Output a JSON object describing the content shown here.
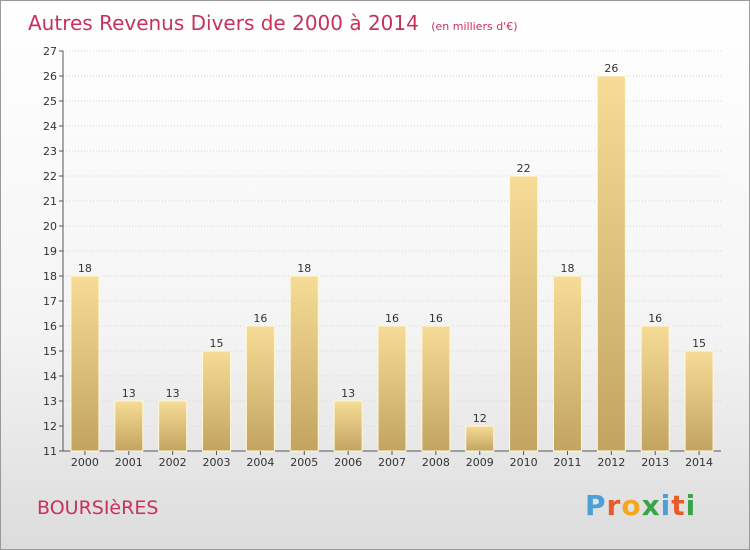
{
  "header": {
    "title": "Autres Revenus Divers de 2000 à 2014",
    "subtitle": "(en milliers d'€)"
  },
  "footer": {
    "place": "BOURSIèRES",
    "brand": "Proxiti"
  },
  "colors": {
    "title": "#c8325a",
    "bar_top": "#f6dc96",
    "bar_bottom": "#c2a460",
    "brand_letters": [
      "#4aa0d8",
      "#e85a2a",
      "#f2a81e",
      "#3aa34a",
      "#4aa0d8",
      "#e85a2a",
      "#3aa34a"
    ]
  },
  "chart_data": {
    "type": "bar",
    "categories": [
      "2000",
      "2001",
      "2002",
      "2003",
      "2004",
      "2005",
      "2006",
      "2007",
      "2008",
      "2009",
      "2010",
      "2011",
      "2012",
      "2013",
      "2014"
    ],
    "values": [
      18,
      13,
      13,
      15,
      16,
      18,
      13,
      16,
      16,
      12,
      22,
      18,
      26,
      16,
      15
    ],
    "ylim": [
      11,
      27
    ],
    "yticks": [
      11,
      12,
      13,
      14,
      15,
      16,
      17,
      18,
      19,
      20,
      21,
      22,
      23,
      24,
      25,
      26,
      27
    ],
    "grid": true,
    "data_labels": true
  }
}
